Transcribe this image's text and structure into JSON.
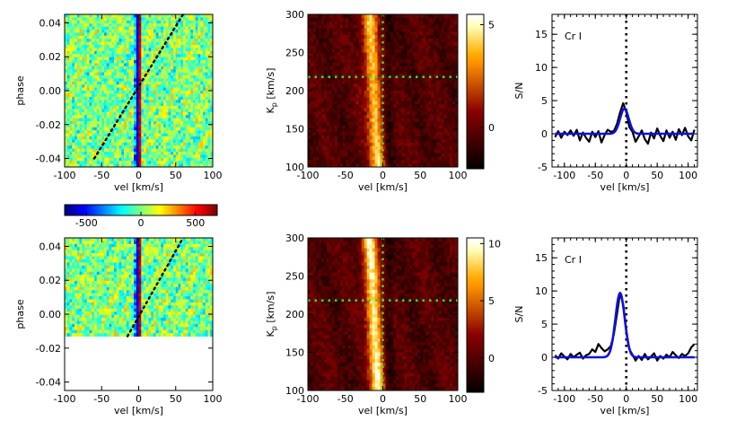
{
  "colors": {
    "dotted_black": "#000000",
    "dotted_green": "#39d82d",
    "fit_line": "#1010dd",
    "data_line": "#000000"
  },
  "chart_data": [
    {
      "type": "heatmap",
      "name": "phase-map-top",
      "xlabel": "vel [km/s]",
      "ylabel": "phase",
      "xlim": [
        -100,
        100
      ],
      "ylim": [
        -0.045,
        0.045
      ],
      "x_ticks": [
        "-100",
        "-50",
        "0",
        "50",
        "100"
      ],
      "y_ticks": [
        "-0.04",
        "-0.02",
        "0.00",
        "0.02",
        "0.04"
      ],
      "trail_line": {
        "from": [
          -60,
          -0.04
        ],
        "to": [
          60,
          0.045
        ]
      },
      "colormap": "jet",
      "data_coverage_phase": [
        -0.045,
        0.045
      ]
    },
    {
      "type": "heatmap",
      "name": "kp-map-top",
      "xlabel": "vel [km/s]",
      "ylabel": "K",
      "ylabel_sub": "p",
      "ylabel_suffix": " [km/s]",
      "xlim": [
        -100,
        100
      ],
      "ylim": [
        100,
        300
      ],
      "x_ticks": [
        "-100",
        "-50",
        "0",
        "50",
        "100"
      ],
      "y_ticks": [
        "100",
        "150",
        "200",
        "250",
        "300"
      ],
      "marker_vsys": 0,
      "marker_kp": 218,
      "colorbar_range": [
        -2,
        5.5
      ],
      "colorbar_ticks": [
        "0",
        "5"
      ],
      "colormap": "gist_heat"
    },
    {
      "type": "line",
      "name": "sn-top",
      "label": "Cr I",
      "xlabel": "vel [km/s]",
      "ylabel": "S/N",
      "xlim": [
        -120,
        115
      ],
      "ylim": [
        -5,
        18
      ],
      "x_ticks": [
        "-100",
        "-50",
        "0",
        "50",
        "100"
      ],
      "y_ticks": [
        "-5",
        "0",
        "5",
        "10",
        "15"
      ],
      "vline_x": 0,
      "series": [
        {
          "name": "data",
          "x": [
            -115,
            -110,
            -105,
            -100,
            -95,
            -90,
            -85,
            -80,
            -75,
            -70,
            -65,
            -60,
            -55,
            -50,
            -45,
            -40,
            -35,
            -30,
            -25,
            -20,
            -15,
            -10,
            -5,
            0,
            5,
            10,
            15,
            20,
            25,
            30,
            35,
            40,
            45,
            50,
            55,
            60,
            65,
            70,
            75,
            80,
            85,
            90,
            95,
            100,
            105,
            110
          ],
          "y": [
            -0.5,
            0.4,
            -0.6,
            0.3,
            -0.2,
            0.5,
            -0.3,
            0.6,
            -1.0,
            0.2,
            -0.6,
            -1.2,
            0.3,
            -0.5,
            0.4,
            -1.3,
            -0.2,
            0.6,
            0.3,
            0.4,
            1.5,
            3.2,
            4.6,
            3.3,
            1.0,
            0.3,
            -1.2,
            -0.4,
            0.5,
            -0.8,
            -1.5,
            0.2,
            -0.7,
            0.8,
            -0.3,
            -1.1,
            0.5,
            -0.6,
            0.3,
            -0.9,
            0.7,
            -0.2,
            0.9,
            -0.4,
            -1.0,
            0.6
          ]
        },
        {
          "name": "gaussian fit",
          "amplitude": 3.8,
          "center": -3,
          "sigma": 7
        }
      ]
    },
    {
      "type": "heatmap",
      "name": "phase-map-bottom",
      "xlabel": "vel [km/s]",
      "ylabel": "phase",
      "xlim": [
        -100,
        100
      ],
      "ylim": [
        -0.045,
        0.045
      ],
      "x_ticks": [
        "-100",
        "-50",
        "0",
        "50",
        "100"
      ],
      "y_ticks": [
        "-0.04",
        "-0.02",
        "0.00",
        "0.02",
        "0.04"
      ],
      "trail_line": {
        "from": [
          -15,
          -0.013
        ],
        "to": [
          60,
          0.045
        ]
      },
      "colormap": "jet",
      "data_coverage_phase": [
        -0.013,
        0.045
      ]
    },
    {
      "type": "heatmap",
      "name": "kp-map-bottom",
      "xlabel": "vel [km/s]",
      "ylabel": "K",
      "ylabel_sub": "p",
      "ylabel_suffix": " [km/s]",
      "xlim": [
        -100,
        100
      ],
      "ylim": [
        100,
        300
      ],
      "x_ticks": [
        "-100",
        "-50",
        "0",
        "50",
        "100"
      ],
      "y_ticks": [
        "100",
        "150",
        "200",
        "250",
        "300"
      ],
      "marker_vsys": 0,
      "marker_kp": 218,
      "colorbar_range": [
        -3,
        10.5
      ],
      "colorbar_ticks": [
        "0",
        "5",
        "10"
      ],
      "colormap": "gist_heat"
    },
    {
      "type": "line",
      "name": "sn-bottom",
      "label": "Cr I",
      "xlabel": "vel [km/s]",
      "ylabel": "S/N",
      "xlim": [
        -120,
        115
      ],
      "ylim": [
        -5,
        18
      ],
      "x_ticks": [
        "-100",
        "-50",
        "0",
        "50",
        "100"
      ],
      "y_ticks": [
        "-5",
        "0",
        "5",
        "10",
        "15"
      ],
      "vline_x": 0,
      "series": [
        {
          "name": "data",
          "x": [
            -115,
            -110,
            -105,
            -100,
            -95,
            -90,
            -85,
            -80,
            -75,
            -70,
            -65,
            -60,
            -55,
            -50,
            -45,
            -40,
            -35,
            -30,
            -25,
            -20,
            -15,
            -10,
            -5,
            0,
            5,
            10,
            15,
            20,
            25,
            30,
            35,
            40,
            45,
            50,
            55,
            60,
            65,
            70,
            75,
            80,
            85,
            90,
            95,
            100,
            105,
            110
          ],
          "y": [
            0.3,
            -0.2,
            0.6,
            0.1,
            -0.3,
            0.5,
            0.0,
            0.4,
            0.7,
            -0.2,
            0.3,
            0.5,
            1.2,
            0.8,
            2.0,
            1.4,
            0.9,
            1.2,
            1.7,
            3.5,
            6.5,
            9.7,
            8.0,
            4.0,
            1.2,
            0.4,
            -0.5,
            0.2,
            -0.4,
            0.5,
            -0.3,
            0.1,
            0.6,
            -0.5,
            0.2,
            -0.2,
            0.4,
            0.0,
            0.8,
            0.3,
            -0.1,
            0.5,
            0.2,
            0.6,
            1.5,
            2.0
          ]
        },
        {
          "name": "gaussian fit",
          "amplitude": 9.7,
          "center": -10,
          "sigma": 7.5
        }
      ]
    },
    {
      "type": "colorbar",
      "name": "phase-colorbar",
      "range": [
        -700,
        700
      ],
      "ticks": [
        "-500",
        "0",
        "500"
      ],
      "colormap": "jet"
    }
  ]
}
